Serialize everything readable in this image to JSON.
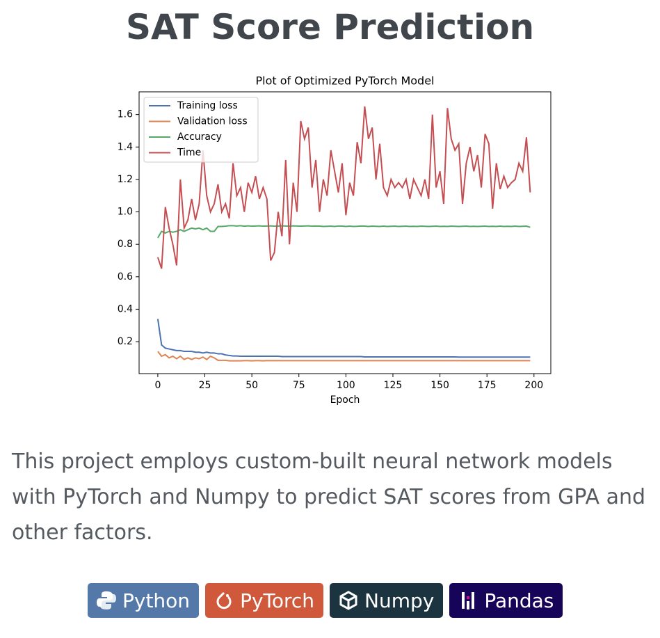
{
  "header": {
    "title": "SAT Score Prediction"
  },
  "chart_data": {
    "type": "line",
    "title": "Plot of Optimized PyTorch Model",
    "x_label": "Epoch",
    "x": [
      0,
      2,
      4,
      6,
      8,
      10,
      12,
      14,
      16,
      18,
      20,
      22,
      24,
      26,
      28,
      30,
      32,
      34,
      36,
      38,
      40,
      42,
      44,
      46,
      48,
      50,
      52,
      54,
      56,
      58,
      60,
      62,
      64,
      66,
      68,
      70,
      72,
      74,
      76,
      78,
      80,
      82,
      84,
      86,
      88,
      90,
      92,
      94,
      96,
      98,
      100,
      102,
      104,
      106,
      108,
      110,
      112,
      114,
      116,
      118,
      120,
      122,
      124,
      126,
      128,
      130,
      132,
      134,
      136,
      138,
      140,
      142,
      144,
      146,
      148,
      150,
      152,
      154,
      156,
      158,
      160,
      162,
      164,
      166,
      168,
      170,
      172,
      174,
      176,
      178,
      180,
      182,
      184,
      186,
      188,
      190,
      192,
      194,
      196,
      198
    ],
    "series": [
      {
        "name": "Training loss",
        "color": "#4c72b0",
        "values": [
          0.34,
          0.18,
          0.16,
          0.155,
          0.15,
          0.145,
          0.145,
          0.14,
          0.14,
          0.14,
          0.135,
          0.135,
          0.13,
          0.135,
          0.13,
          0.13,
          0.125,
          0.125,
          0.118,
          0.115,
          0.112,
          0.112,
          0.11,
          0.11,
          0.11,
          0.11,
          0.11,
          0.11,
          0.11,
          0.11,
          0.11,
          0.11,
          0.11,
          0.108,
          0.108,
          0.108,
          0.108,
          0.108,
          0.108,
          0.108,
          0.108,
          0.108,
          0.108,
          0.108,
          0.108,
          0.108,
          0.108,
          0.108,
          0.108,
          0.108,
          0.108,
          0.108,
          0.108,
          0.108,
          0.108,
          0.106,
          0.106,
          0.106,
          0.106,
          0.106,
          0.106,
          0.106,
          0.106,
          0.106,
          0.106,
          0.106,
          0.106,
          0.106,
          0.106,
          0.106,
          0.106,
          0.106,
          0.106,
          0.106,
          0.106,
          0.106,
          0.106,
          0.106,
          0.106,
          0.106,
          0.105,
          0.105,
          0.105,
          0.105,
          0.105,
          0.105,
          0.105,
          0.105,
          0.105,
          0.105,
          0.105,
          0.105,
          0.105,
          0.105,
          0.105,
          0.105,
          0.105,
          0.105,
          0.105,
          0.105
        ]
      },
      {
        "name": "Validation loss",
        "color": "#dd8452",
        "values": [
          0.14,
          0.11,
          0.12,
          0.1,
          0.11,
          0.095,
          0.11,
          0.09,
          0.1,
          0.09,
          0.1,
          0.095,
          0.105,
          0.09,
          0.11,
          0.1,
          0.085,
          0.085,
          0.085,
          0.082,
          0.082,
          0.082,
          0.082,
          0.083,
          0.083,
          0.082,
          0.083,
          0.083,
          0.082,
          0.083,
          0.083,
          0.083,
          0.083,
          0.083,
          0.083,
          0.083,
          0.083,
          0.083,
          0.083,
          0.083,
          0.083,
          0.083,
          0.083,
          0.083,
          0.083,
          0.083,
          0.083,
          0.083,
          0.083,
          0.083,
          0.083,
          0.083,
          0.083,
          0.083,
          0.083,
          0.083,
          0.083,
          0.083,
          0.083,
          0.083,
          0.083,
          0.083,
          0.083,
          0.083,
          0.083,
          0.083,
          0.083,
          0.083,
          0.083,
          0.083,
          0.083,
          0.083,
          0.083,
          0.083,
          0.083,
          0.083,
          0.083,
          0.083,
          0.083,
          0.083,
          0.083,
          0.083,
          0.083,
          0.083,
          0.083,
          0.083,
          0.083,
          0.083,
          0.083,
          0.083,
          0.083,
          0.083,
          0.083,
          0.083,
          0.083,
          0.083,
          0.083,
          0.083,
          0.083,
          0.083
        ]
      },
      {
        "name": "Accuracy",
        "color": "#55a868",
        "values": [
          0.84,
          0.88,
          0.87,
          0.88,
          0.875,
          0.88,
          0.89,
          0.88,
          0.89,
          0.9,
          0.895,
          0.9,
          0.89,
          0.9,
          0.88,
          0.88,
          0.91,
          0.91,
          0.912,
          0.915,
          0.915,
          0.913,
          0.915,
          0.912,
          0.914,
          0.912,
          0.913,
          0.914,
          0.912,
          0.913,
          0.914,
          0.912,
          0.913,
          0.914,
          0.913,
          0.912,
          0.914,
          0.913,
          0.912,
          0.913,
          0.914,
          0.912,
          0.913,
          0.912,
          0.91,
          0.911,
          0.912,
          0.91,
          0.913,
          0.912,
          0.91,
          0.912,
          0.91,
          0.911,
          0.913,
          0.912,
          0.91,
          0.912,
          0.911,
          0.91,
          0.912,
          0.91,
          0.911,
          0.912,
          0.91,
          0.911,
          0.912,
          0.91,
          0.911,
          0.91,
          0.912,
          0.911,
          0.91,
          0.911,
          0.912,
          0.91,
          0.911,
          0.91,
          0.912,
          0.911,
          0.91,
          0.911,
          0.912,
          0.91,
          0.911,
          0.91,
          0.911,
          0.912,
          0.91,
          0.911,
          0.91,
          0.912,
          0.91,
          0.911,
          0.91,
          0.912,
          0.91,
          0.911,
          0.912,
          0.905
        ]
      },
      {
        "name": "Time",
        "color": "#c44e52",
        "values": [
          0.72,
          0.65,
          1.03,
          0.9,
          0.8,
          0.67,
          1.2,
          0.9,
          0.95,
          1.08,
          0.95,
          1.05,
          1.38,
          1.1,
          1.0,
          1.05,
          1.17,
          1.0,
          1.05,
          0.96,
          1.3,
          1.1,
          1.15,
          1.0,
          1.18,
          1.12,
          1.22,
          1.08,
          1.15,
          1.08,
          0.7,
          0.75,
          1.0,
          0.85,
          1.32,
          0.8,
          1.18,
          1.0,
          1.56,
          1.45,
          1.52,
          1.15,
          1.32,
          1.0,
          1.2,
          1.1,
          1.38,
          1.25,
          1.12,
          1.3,
          0.98,
          1.18,
          1.1,
          1.43,
          1.3,
          1.65,
          1.45,
          1.52,
          1.2,
          1.42,
          1.15,
          1.1,
          1.2,
          1.15,
          1.18,
          1.15,
          1.2,
          1.08,
          1.2,
          1.15,
          1.1,
          1.2,
          1.08,
          1.6,
          1.15,
          1.25,
          1.05,
          1.64,
          1.45,
          1.38,
          1.42,
          1.05,
          1.3,
          1.4,
          1.25,
          1.35,
          1.15,
          1.48,
          1.42,
          1.02,
          1.3,
          1.14,
          1.22,
          1.15,
          1.18,
          1.2,
          1.3,
          1.25,
          1.46,
          1.12
        ]
      }
    ],
    "xlim": [
      -9.95,
      208.95
    ],
    "ylim": [
      0.003,
      1.74
    ],
    "xticks": [
      0,
      25,
      50,
      75,
      100,
      125,
      150,
      175,
      200
    ],
    "yticks": [
      0.2,
      0.4,
      0.6,
      0.8,
      {
        "value": 1,
        "label": "1.0"
      },
      1.2,
      1.4,
      1.6
    ],
    "legend": "upper left"
  },
  "description": "This project employs custom-built neural network models with PyTorch and Numpy to predict SAT scores from GPA and other factors.",
  "badges": [
    "Python",
    "PyTorch",
    "Numpy",
    "Pandas"
  ]
}
